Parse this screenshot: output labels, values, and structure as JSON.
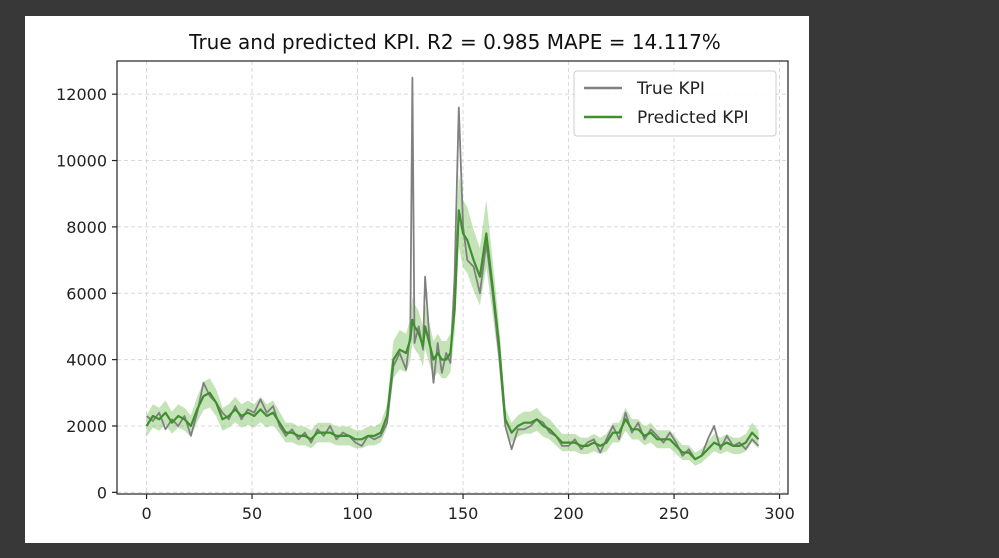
{
  "chart_data": {
    "type": "line",
    "title": "True and predicted KPI. R2 = 0.985 MAPE = 14.117%",
    "xlabel": "",
    "ylabel": "",
    "xlim": [
      -14,
      304
    ],
    "ylim": [
      -50,
      13000
    ],
    "x_ticks": [
      0,
      50,
      100,
      150,
      200,
      250,
      300
    ],
    "y_ticks": [
      0,
      2000,
      4000,
      6000,
      8000,
      10000,
      12000
    ],
    "grid": true,
    "legend_position": "top-right",
    "confidence_band": true,
    "colors": {
      "true": "#808080",
      "predicted": "#3f8f2f",
      "band": "#7cc35f",
      "grid": "#d8d8d8",
      "axis": "#222222"
    },
    "series": [
      {
        "name": "True KPI",
        "points": [
          [
            0,
            2300
          ],
          [
            3,
            2150
          ],
          [
            6,
            2400
          ],
          [
            9,
            1900
          ],
          [
            12,
            2200
          ],
          [
            15,
            2000
          ],
          [
            18,
            2300
          ],
          [
            21,
            1700
          ],
          [
            24,
            2400
          ],
          [
            27,
            3300
          ],
          [
            30,
            2900
          ],
          [
            33,
            2700
          ],
          [
            36,
            2400
          ],
          [
            39,
            2200
          ],
          [
            42,
            2600
          ],
          [
            45,
            2200
          ],
          [
            48,
            2500
          ],
          [
            51,
            2400
          ],
          [
            54,
            2800
          ],
          [
            57,
            2400
          ],
          [
            60,
            2600
          ],
          [
            63,
            2000
          ],
          [
            66,
            1700
          ],
          [
            69,
            1900
          ],
          [
            72,
            1600
          ],
          [
            75,
            1800
          ],
          [
            78,
            1500
          ],
          [
            81,
            1900
          ],
          [
            84,
            1700
          ],
          [
            87,
            2000
          ],
          [
            90,
            1600
          ],
          [
            93,
            1800
          ],
          [
            96,
            1700
          ],
          [
            99,
            1500
          ],
          [
            102,
            1400
          ],
          [
            105,
            1700
          ],
          [
            108,
            1600
          ],
          [
            111,
            1700
          ],
          [
            114,
            2100
          ],
          [
            117,
            3800
          ],
          [
            120,
            4200
          ],
          [
            123,
            3700
          ],
          [
            125,
            4800
          ],
          [
            126,
            12500
          ],
          [
            127,
            4500
          ],
          [
            129,
            5000
          ],
          [
            131,
            4300
          ],
          [
            132,
            6500
          ],
          [
            134,
            4700
          ],
          [
            136,
            3300
          ],
          [
            138,
            4500
          ],
          [
            140,
            3600
          ],
          [
            142,
            4200
          ],
          [
            144,
            3900
          ],
          [
            146,
            6500
          ],
          [
            148,
            11600
          ],
          [
            150,
            8000
          ],
          [
            152,
            7000
          ],
          [
            155,
            6800
          ],
          [
            158,
            6000
          ],
          [
            161,
            7500
          ],
          [
            164,
            6000
          ],
          [
            167,
            4200
          ],
          [
            170,
            2000
          ],
          [
            173,
            1300
          ],
          [
            176,
            1900
          ],
          [
            179,
            1900
          ],
          [
            182,
            2000
          ],
          [
            185,
            2200
          ],
          [
            188,
            2100
          ],
          [
            191,
            1800
          ],
          [
            194,
            1700
          ],
          [
            197,
            1400
          ],
          [
            200,
            1400
          ],
          [
            203,
            1600
          ],
          [
            206,
            1300
          ],
          [
            209,
            1500
          ],
          [
            212,
            1600
          ],
          [
            215,
            1200
          ],
          [
            218,
            1600
          ],
          [
            221,
            2000
          ],
          [
            224,
            1600
          ],
          [
            227,
            2400
          ],
          [
            230,
            1800
          ],
          [
            233,
            2100
          ],
          [
            236,
            1600
          ],
          [
            239,
            1900
          ],
          [
            242,
            1700
          ],
          [
            245,
            1500
          ],
          [
            248,
            1800
          ],
          [
            251,
            1500
          ],
          [
            254,
            1100
          ],
          [
            257,
            1300
          ],
          [
            260,
            1000
          ],
          [
            263,
            1100
          ],
          [
            266,
            1600
          ],
          [
            269,
            2000
          ],
          [
            272,
            1300
          ],
          [
            275,
            1700
          ],
          [
            278,
            1400
          ],
          [
            281,
            1500
          ],
          [
            284,
            1300
          ],
          [
            287,
            1600
          ],
          [
            290,
            1400
          ]
        ]
      },
      {
        "name": "Predicted KPI",
        "points": [
          [
            0,
            2000
          ],
          [
            3,
            2300
          ],
          [
            6,
            2200
          ],
          [
            9,
            2400
          ],
          [
            12,
            2100
          ],
          [
            15,
            2300
          ],
          [
            18,
            2200
          ],
          [
            21,
            2000
          ],
          [
            24,
            2500
          ],
          [
            27,
            2900
          ],
          [
            30,
            3000
          ],
          [
            33,
            2700
          ],
          [
            36,
            2200
          ],
          [
            39,
            2300
          ],
          [
            42,
            2500
          ],
          [
            45,
            2300
          ],
          [
            48,
            2400
          ],
          [
            51,
            2300
          ],
          [
            54,
            2500
          ],
          [
            57,
            2300
          ],
          [
            60,
            2400
          ],
          [
            63,
            2100
          ],
          [
            66,
            1800
          ],
          [
            69,
            1800
          ],
          [
            72,
            1700
          ],
          [
            75,
            1700
          ],
          [
            78,
            1600
          ],
          [
            81,
            1800
          ],
          [
            84,
            1800
          ],
          [
            87,
            1800
          ],
          [
            90,
            1700
          ],
          [
            93,
            1700
          ],
          [
            96,
            1700
          ],
          [
            99,
            1600
          ],
          [
            102,
            1600
          ],
          [
            105,
            1700
          ],
          [
            108,
            1700
          ],
          [
            111,
            1800
          ],
          [
            114,
            2300
          ],
          [
            117,
            4000
          ],
          [
            120,
            4300
          ],
          [
            123,
            4200
          ],
          [
            125,
            4600
          ],
          [
            126,
            5200
          ],
          [
            127,
            5000
          ],
          [
            129,
            4800
          ],
          [
            131,
            4400
          ],
          [
            132,
            5000
          ],
          [
            134,
            4500
          ],
          [
            136,
            4000
          ],
          [
            138,
            4200
          ],
          [
            140,
            4000
          ],
          [
            142,
            4000
          ],
          [
            144,
            4200
          ],
          [
            146,
            5500
          ],
          [
            148,
            8500
          ],
          [
            150,
            7800
          ],
          [
            152,
            7600
          ],
          [
            155,
            7000
          ],
          [
            158,
            6500
          ],
          [
            161,
            7800
          ],
          [
            164,
            6200
          ],
          [
            167,
            4500
          ],
          [
            170,
            2200
          ],
          [
            173,
            1800
          ],
          [
            176,
            2000
          ],
          [
            179,
            2100
          ],
          [
            182,
            2100
          ],
          [
            185,
            2200
          ],
          [
            188,
            2000
          ],
          [
            191,
            1900
          ],
          [
            194,
            1700
          ],
          [
            197,
            1500
          ],
          [
            200,
            1500
          ],
          [
            203,
            1500
          ],
          [
            206,
            1400
          ],
          [
            209,
            1400
          ],
          [
            212,
            1500
          ],
          [
            215,
            1400
          ],
          [
            218,
            1500
          ],
          [
            221,
            1800
          ],
          [
            224,
            1800
          ],
          [
            227,
            2200
          ],
          [
            230,
            1900
          ],
          [
            233,
            1900
          ],
          [
            236,
            1700
          ],
          [
            239,
            1800
          ],
          [
            242,
            1600
          ],
          [
            245,
            1600
          ],
          [
            248,
            1600
          ],
          [
            251,
            1400
          ],
          [
            254,
            1200
          ],
          [
            257,
            1200
          ],
          [
            260,
            1000
          ],
          [
            263,
            1100
          ],
          [
            266,
            1300
          ],
          [
            269,
            1500
          ],
          [
            272,
            1400
          ],
          [
            275,
            1500
          ],
          [
            278,
            1400
          ],
          [
            281,
            1400
          ],
          [
            284,
            1500
          ],
          [
            287,
            1800
          ],
          [
            290,
            1600
          ]
        ]
      }
    ]
  }
}
